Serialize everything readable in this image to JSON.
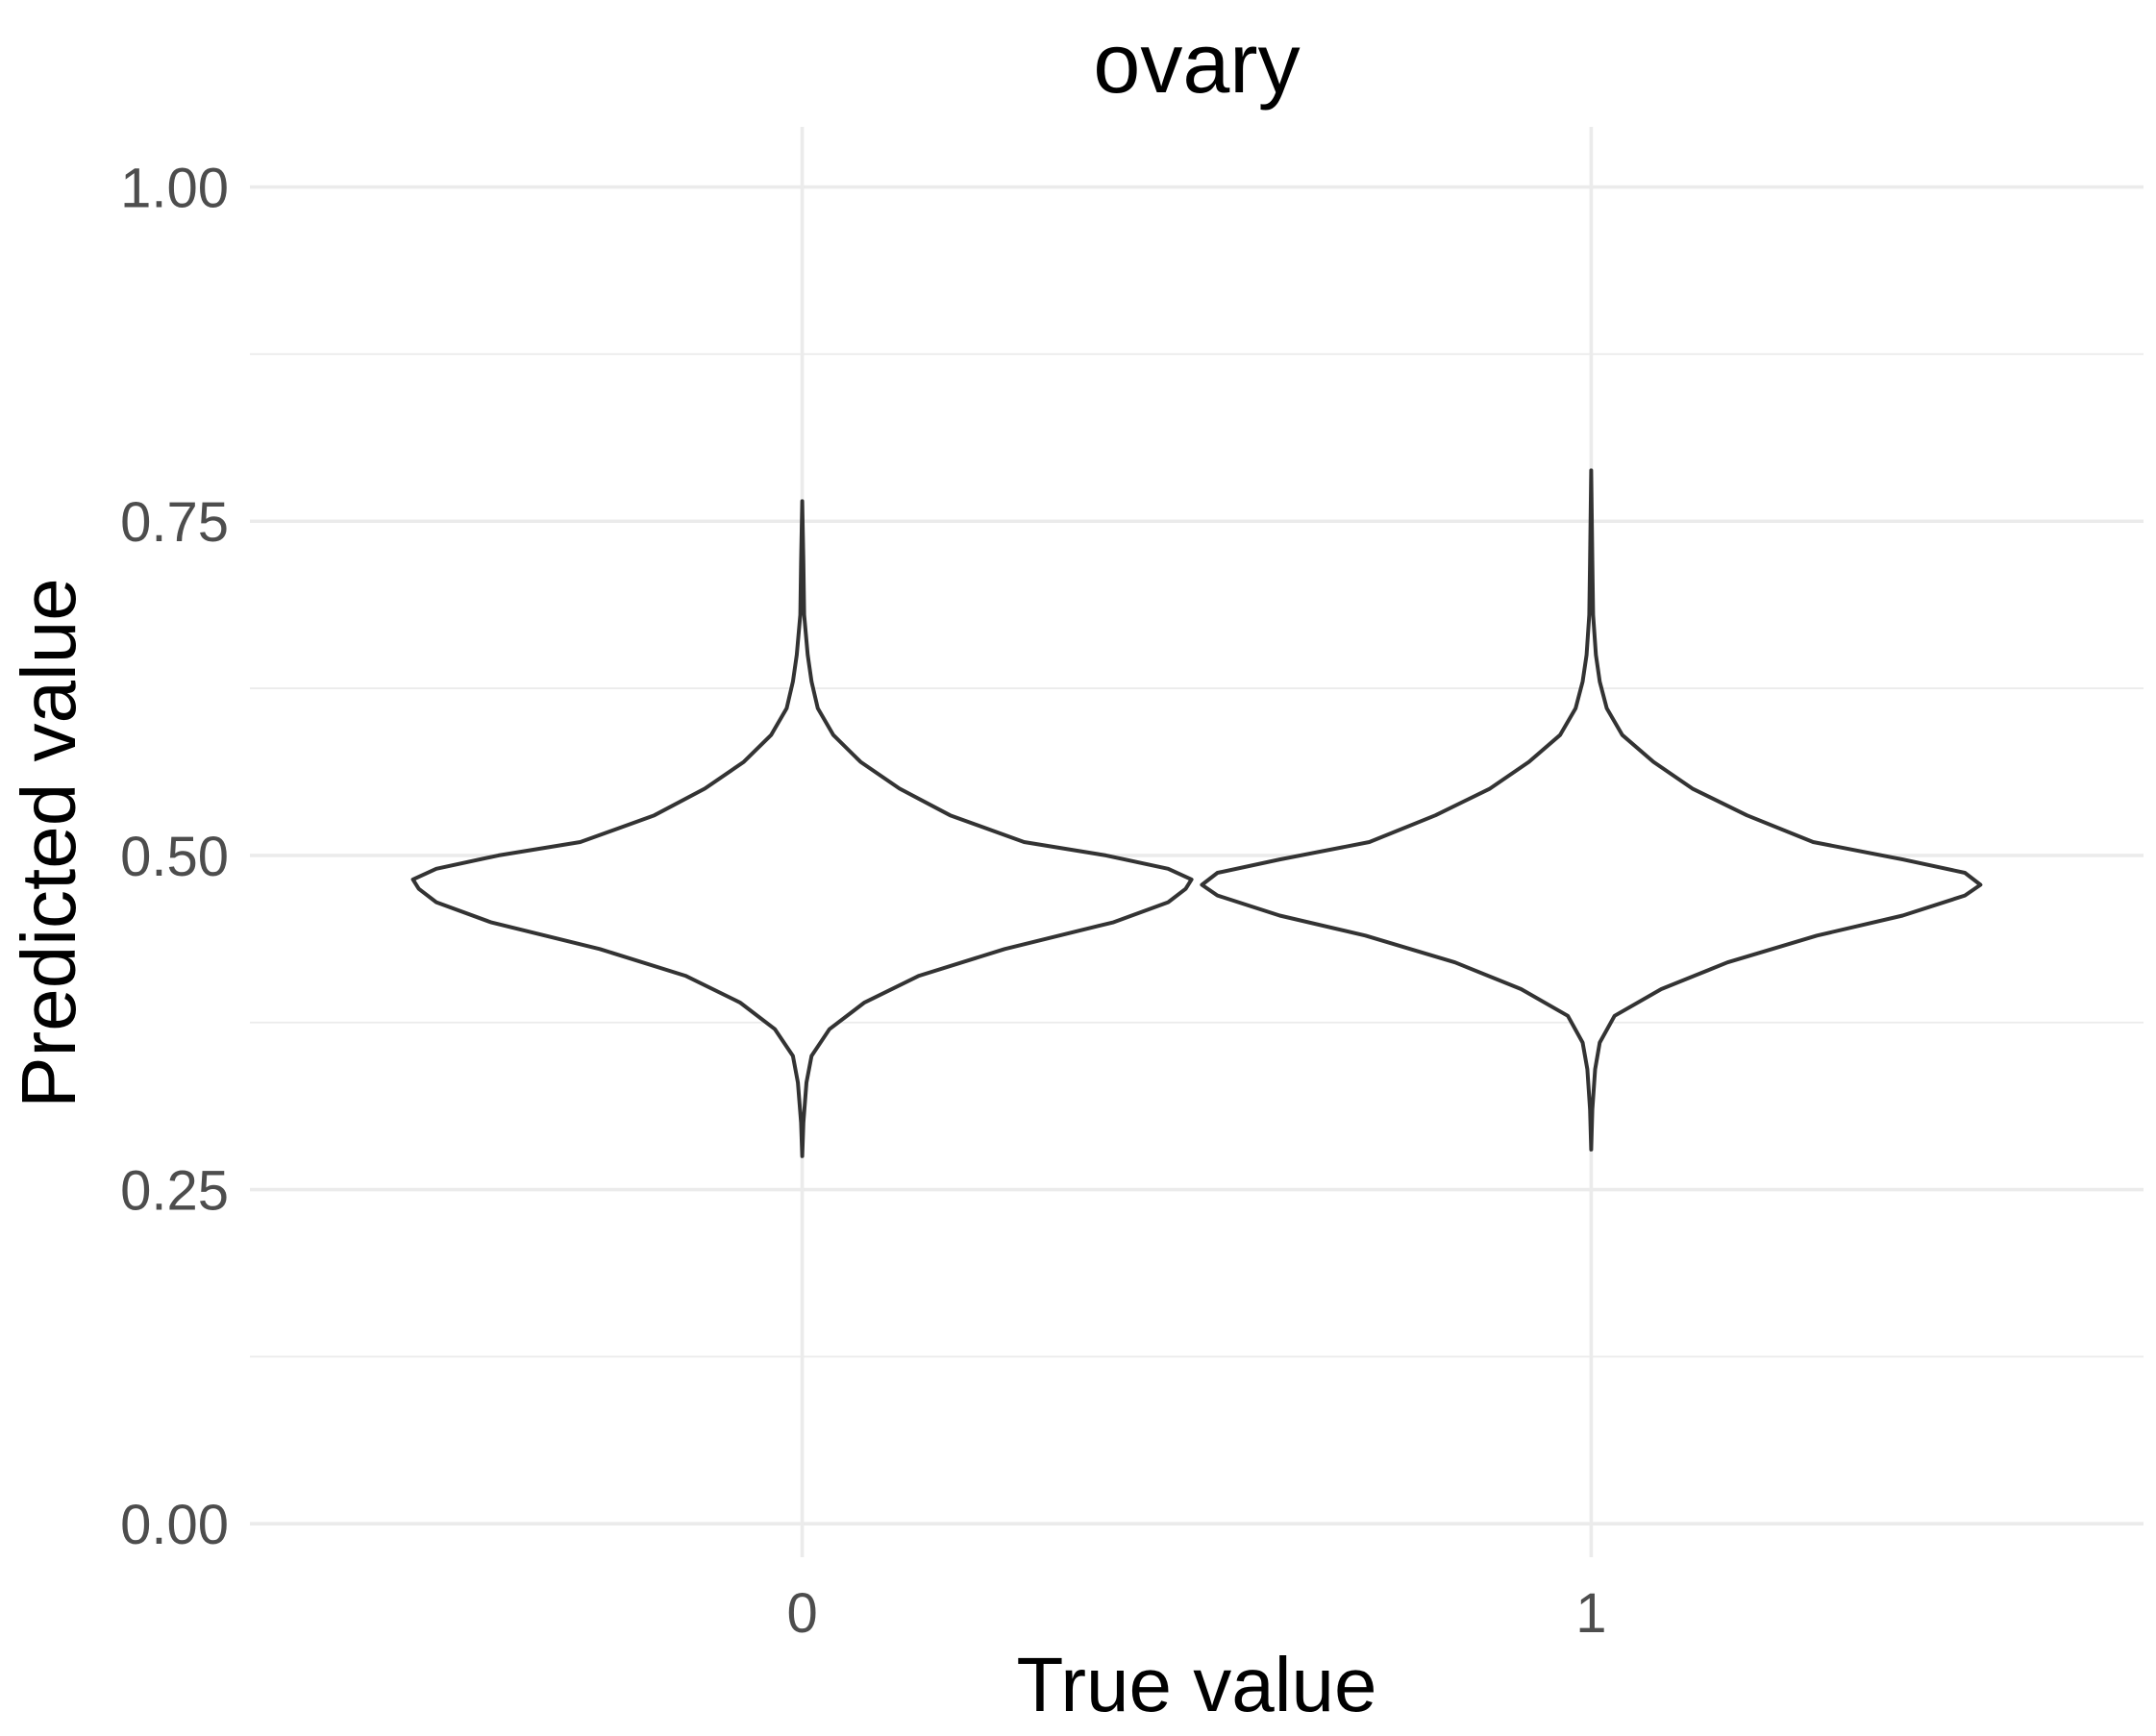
{
  "chart_data": {
    "type": "violin",
    "title": "ovary",
    "xlabel": "True value",
    "ylabel": "Predicted value",
    "categories": [
      "0",
      "1"
    ],
    "ylim": [
      -0.025,
      1.045
    ],
    "y_ticks": [
      0.0,
      0.25,
      0.5,
      0.75,
      1.0
    ],
    "y_tick_labels": [
      "0.00",
      "0.25",
      "0.50",
      "0.75",
      "1.00"
    ],
    "y_minor_ticks": [
      0.125,
      0.375,
      0.625,
      0.875
    ],
    "grid": true,
    "violins": [
      {
        "category": "0",
        "min": 0.275,
        "max": 0.765,
        "density": [
          [
            0.275,
            0.0
          ],
          [
            0.3,
            0.003
          ],
          [
            0.33,
            0.011
          ],
          [
            0.35,
            0.024
          ],
          [
            0.37,
            0.07
          ],
          [
            0.39,
            0.16
          ],
          [
            0.41,
            0.3
          ],
          [
            0.43,
            0.52
          ],
          [
            0.45,
            0.8
          ],
          [
            0.465,
            0.94
          ],
          [
            0.475,
            0.985
          ],
          [
            0.482,
            1.0
          ],
          [
            0.49,
            0.94
          ],
          [
            0.5,
            0.78
          ],
          [
            0.51,
            0.57
          ],
          [
            0.53,
            0.38
          ],
          [
            0.55,
            0.25
          ],
          [
            0.57,
            0.15
          ],
          [
            0.59,
            0.08
          ],
          [
            0.61,
            0.04
          ],
          [
            0.63,
            0.024
          ],
          [
            0.65,
            0.014
          ],
          [
            0.68,
            0.005
          ],
          [
            0.72,
            0.003
          ],
          [
            0.765,
            0.0
          ]
        ]
      },
      {
        "category": "1",
        "min": 0.28,
        "max": 0.788,
        "density": [
          [
            0.28,
            0.0
          ],
          [
            0.31,
            0.003
          ],
          [
            0.34,
            0.01
          ],
          [
            0.36,
            0.022
          ],
          [
            0.38,
            0.06
          ],
          [
            0.4,
            0.18
          ],
          [
            0.42,
            0.35
          ],
          [
            0.44,
            0.58
          ],
          [
            0.455,
            0.8
          ],
          [
            0.47,
            0.96
          ],
          [
            0.478,
            1.0
          ],
          [
            0.487,
            0.96
          ],
          [
            0.497,
            0.8
          ],
          [
            0.51,
            0.57
          ],
          [
            0.53,
            0.4
          ],
          [
            0.55,
            0.26
          ],
          [
            0.57,
            0.16
          ],
          [
            0.59,
            0.08
          ],
          [
            0.61,
            0.04
          ],
          [
            0.63,
            0.022
          ],
          [
            0.65,
            0.012
          ],
          [
            0.68,
            0.005
          ],
          [
            0.72,
            0.003
          ],
          [
            0.788,
            0.0
          ]
        ]
      }
    ]
  }
}
